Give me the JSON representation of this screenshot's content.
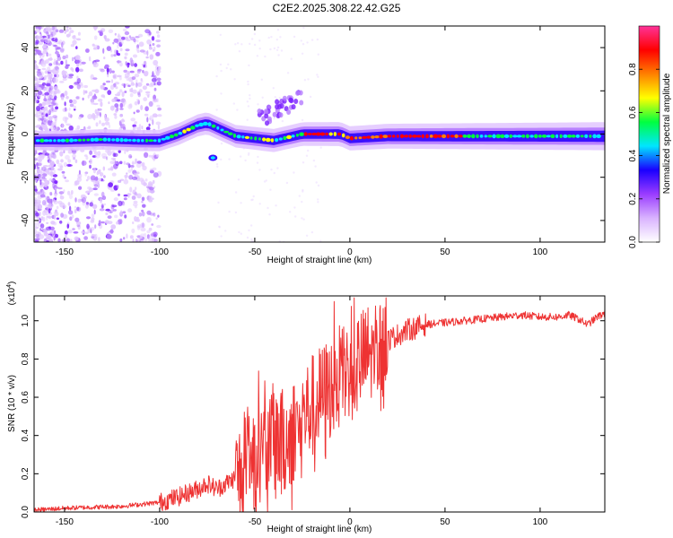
{
  "title": "C2E2.2025.308.22.42.G25",
  "chart_data": [
    {
      "type": "heatmap",
      "name": "spectrogram",
      "xlabel": "Height of straight line (km)",
      "ylabel": "Frequency (Hz)",
      "xlim": [
        -166,
        134
      ],
      "ylim": [
        -50,
        50
      ],
      "xticks": [
        -150,
        -100,
        -50,
        0,
        50,
        100
      ],
      "xtick_labels": [
        "-150",
        "-100",
        "-50",
        "0",
        "50",
        "100"
      ],
      "yticks": [
        -40,
        -20,
        0,
        20,
        40
      ],
      "ytick_labels": [
        "-40",
        "-20",
        "0",
        "20",
        "40"
      ],
      "ridge": {
        "x": [
          -166,
          -150,
          -130,
          -110,
          -100,
          -90,
          -80,
          -75,
          -70,
          -60,
          -50,
          -40,
          -30,
          -25,
          -20,
          -15,
          -10,
          -5,
          0,
          20,
          50,
          80,
          110,
          134
        ],
        "y": [
          -3,
          -3,
          -2.5,
          -3,
          -3,
          0,
          4,
          5,
          3,
          -1,
          -2,
          -3,
          -1,
          0,
          0,
          0,
          0,
          0,
          -2,
          -1,
          -1,
          -1,
          -1,
          -1
        ]
      },
      "colorbar": {
        "label": "Normalized spectral amplitude",
        "range": [
          0,
          1
        ],
        "ticks": [
          0.0,
          0.2,
          0.4,
          0.6,
          0.8
        ],
        "tick_labels": [
          "0.0",
          "0.2",
          "0.4",
          "0.6",
          "0.8"
        ],
        "colors": [
          "#ffffff",
          "#d9b3ff",
          "#9a3cff",
          "#1a00ff",
          "#00e6ff",
          "#00ff40",
          "#ffff00",
          "#ff8000",
          "#ff0000",
          "#ff3399"
        ]
      }
    },
    {
      "type": "line",
      "name": "snr",
      "xlabel": "Height of straight line (km)",
      "ylabel": "SNR (10 * v/v)",
      "yexponent_label": "(x10",
      "yexponent_sup": "4",
      "yexponent_close": ")",
      "xlim": [
        -166,
        134
      ],
      "ylim": [
        0,
        1.13
      ],
      "xticks": [
        -150,
        -100,
        -50,
        0,
        50,
        100
      ],
      "xtick_labels": [
        "-150",
        "-100",
        "-50",
        "0",
        "50",
        "100"
      ],
      "yticks": [
        0.0,
        0.2,
        0.4,
        0.6,
        0.8,
        1.0
      ],
      "ytick_labels": [
        "0.0",
        "0.2",
        "0.4",
        "0.6",
        "0.8",
        "1.0"
      ],
      "color": "#ee3333",
      "series": [
        {
          "name": "SNR",
          "x": [
            -166,
            -150,
            -120,
            -100,
            -90,
            -80,
            -75,
            -70,
            -60,
            -50,
            -45,
            -40,
            -35,
            -30,
            -25,
            -20,
            -15,
            -10,
            -5,
            0,
            10,
            20,
            30,
            40,
            50,
            60,
            70,
            80,
            90,
            100,
            110,
            115,
            120,
            125,
            130,
            134
          ],
          "y": [
            0.01,
            0.02,
            0.03,
            0.05,
            0.08,
            0.12,
            0.15,
            0.12,
            0.18,
            0.27,
            0.35,
            0.4,
            0.37,
            0.42,
            0.5,
            0.55,
            0.6,
            0.65,
            0.7,
            0.74,
            0.82,
            0.9,
            0.95,
            0.98,
            0.99,
            1.0,
            1.01,
            1.02,
            1.03,
            1.02,
            1.02,
            1.03,
            1.01,
            0.98,
            1.02,
            1.04
          ]
        }
      ]
    }
  ]
}
